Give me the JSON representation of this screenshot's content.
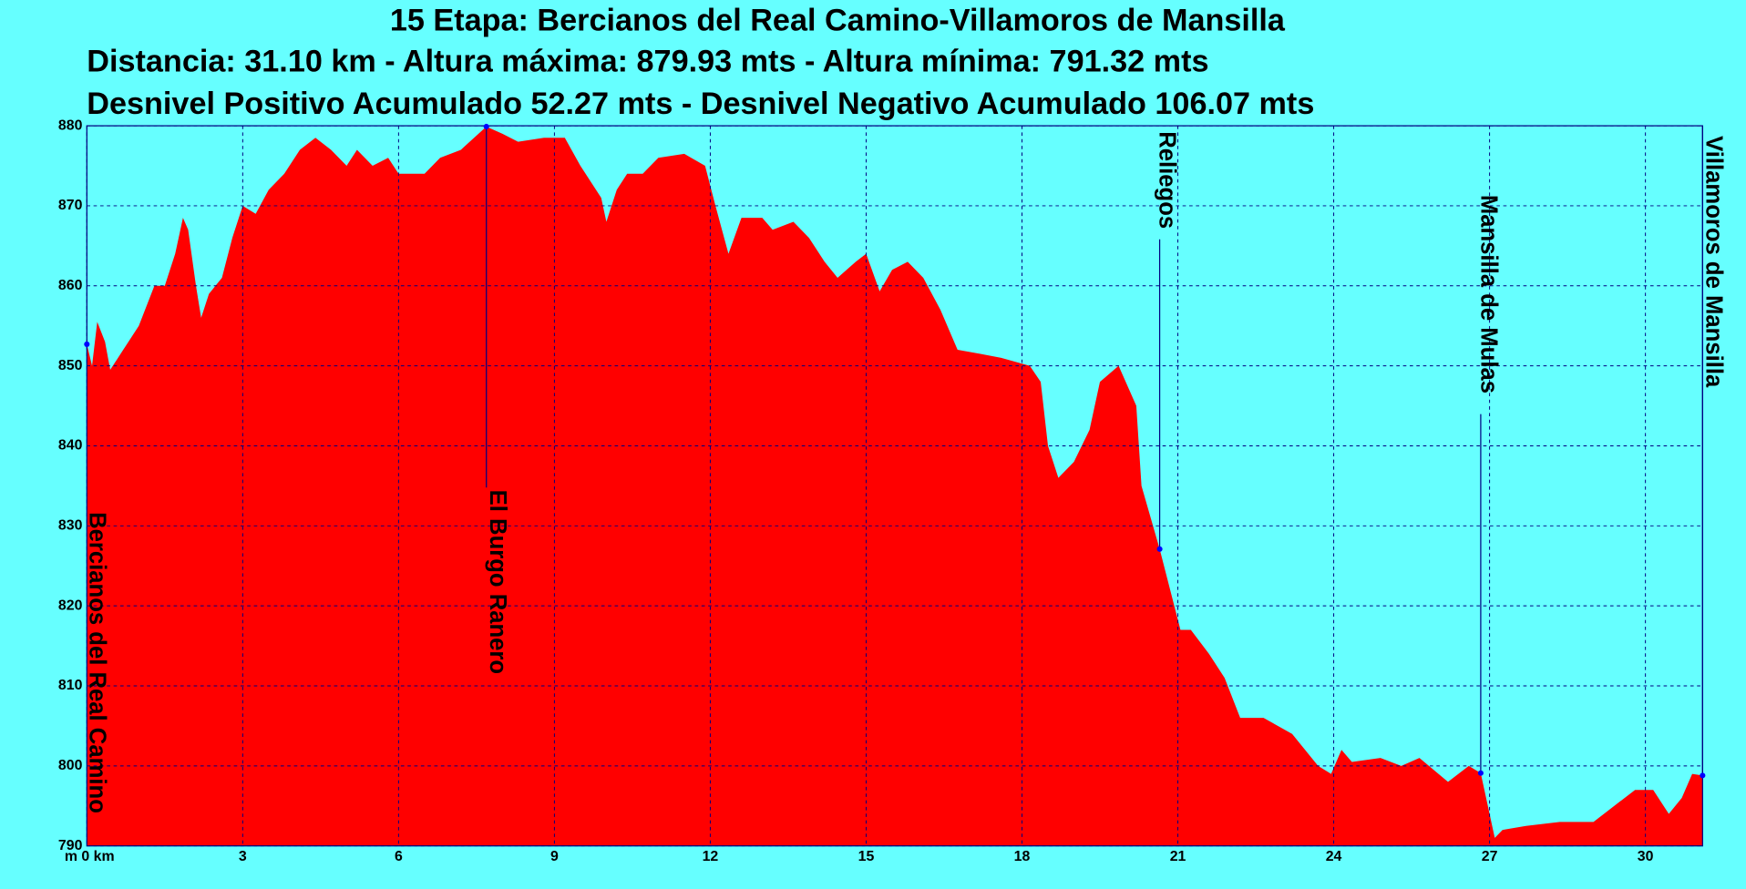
{
  "chart_data": {
    "type": "area",
    "title": "15 Etapa: Bercianos del Real Camino-Villamoros de Mansilla",
    "subtitle": "Distancia: 31.10 km - Altura máxima: 879.93 mts - Altura mínima: 791.32 mts",
    "subtitle2": "Desnivel Positivo Acumulado 52.27 mts - Desnivel Negativo Acumulado 106.07 mts",
    "color": "#ff0000",
    "grid": true,
    "xlim": [
      0,
      31.1
    ],
    "ylim": [
      790,
      880
    ],
    "xticks": [
      {
        "value": 0,
        "label": "m 0 km"
      },
      3,
      6,
      9,
      12,
      15,
      18,
      21,
      24,
      27,
      30
    ],
    "yticks": [
      790,
      800,
      810,
      820,
      830,
      840,
      850,
      860,
      870,
      880
    ],
    "x": [
      0,
      0.1,
      0.2,
      0.35,
      0.45,
      0.7,
      1.0,
      1.3,
      1.5,
      1.7,
      1.85,
      1.95,
      2.1,
      2.2,
      2.35,
      2.6,
      2.8,
      3.0,
      3.25,
      3.5,
      3.8,
      4.1,
      4.4,
      4.7,
      5.0,
      5.2,
      5.5,
      5.8,
      6.0,
      6.5,
      6.8,
      7.2,
      7.69,
      8.0,
      8.3,
      8.8,
      9.2,
      9.5,
      9.9,
      10.0,
      10.2,
      10.4,
      10.7,
      11.0,
      11.5,
      11.9,
      12.1,
      12.35,
      12.6,
      13.0,
      13.2,
      13.6,
      13.9,
      14.2,
      14.45,
      14.8,
      15.0,
      15.26,
      15.5,
      15.8,
      16.1,
      16.43,
      16.76,
      17.2,
      17.6,
      18.15,
      18.36,
      18.5,
      18.7,
      19.0,
      19.3,
      19.5,
      19.86,
      20.2,
      20.3,
      20.65,
      21.05,
      21.25,
      21.6,
      21.9,
      22.2,
      22.65,
      23.2,
      23.7,
      23.95,
      24.15,
      24.35,
      24.9,
      25.3,
      25.65,
      26.2,
      26.6,
      26.83,
      27.1,
      27.25,
      27.7,
      28.35,
      29.0,
      29.4,
      29.8,
      30.15,
      30.45,
      30.7,
      30.9,
      31.1
    ],
    "values": [
      852.7,
      850,
      855.5,
      853,
      849.5,
      852,
      855,
      860,
      860,
      864,
      868.5,
      867,
      860,
      856,
      859,
      861,
      866,
      870,
      869,
      872,
      874,
      877,
      878.5,
      877,
      875,
      877,
      875,
      876,
      874,
      874,
      876,
      877,
      879.9,
      879,
      878,
      878.5,
      878.5,
      875,
      871,
      868,
      872,
      874,
      874,
      876,
      876.5,
      875,
      870,
      864,
      868.5,
      868.5,
      867,
      868,
      866,
      863,
      861,
      863,
      864,
      859.3,
      862,
      863,
      861,
      857,
      852,
      851.5,
      851,
      850,
      848,
      840,
      836,
      838,
      842,
      848,
      850,
      845,
      835,
      827.1,
      817,
      817,
      814,
      811,
      806,
      806,
      804,
      800,
      799,
      802,
      800.5,
      801,
      800,
      801,
      798,
      800,
      799.1,
      791,
      792,
      792.5,
      793,
      793,
      795,
      797,
      797,
      794,
      796,
      799,
      798.8
    ],
    "annotations": [
      {
        "x": 0,
        "y": 852.7,
        "label": "Bercianos del Real Camino"
      },
      {
        "x": 7.69,
        "y": 879.9,
        "label": "El Burgo Ranero"
      },
      {
        "x": 20.65,
        "y": 827.1,
        "label": "Reliegos"
      },
      {
        "x": 26.83,
        "y": 799.1,
        "label": "Mansilla de Mulas"
      },
      {
        "x": 31.1,
        "y": 798.8,
        "label": "Villamoros de Mansilla"
      }
    ]
  }
}
